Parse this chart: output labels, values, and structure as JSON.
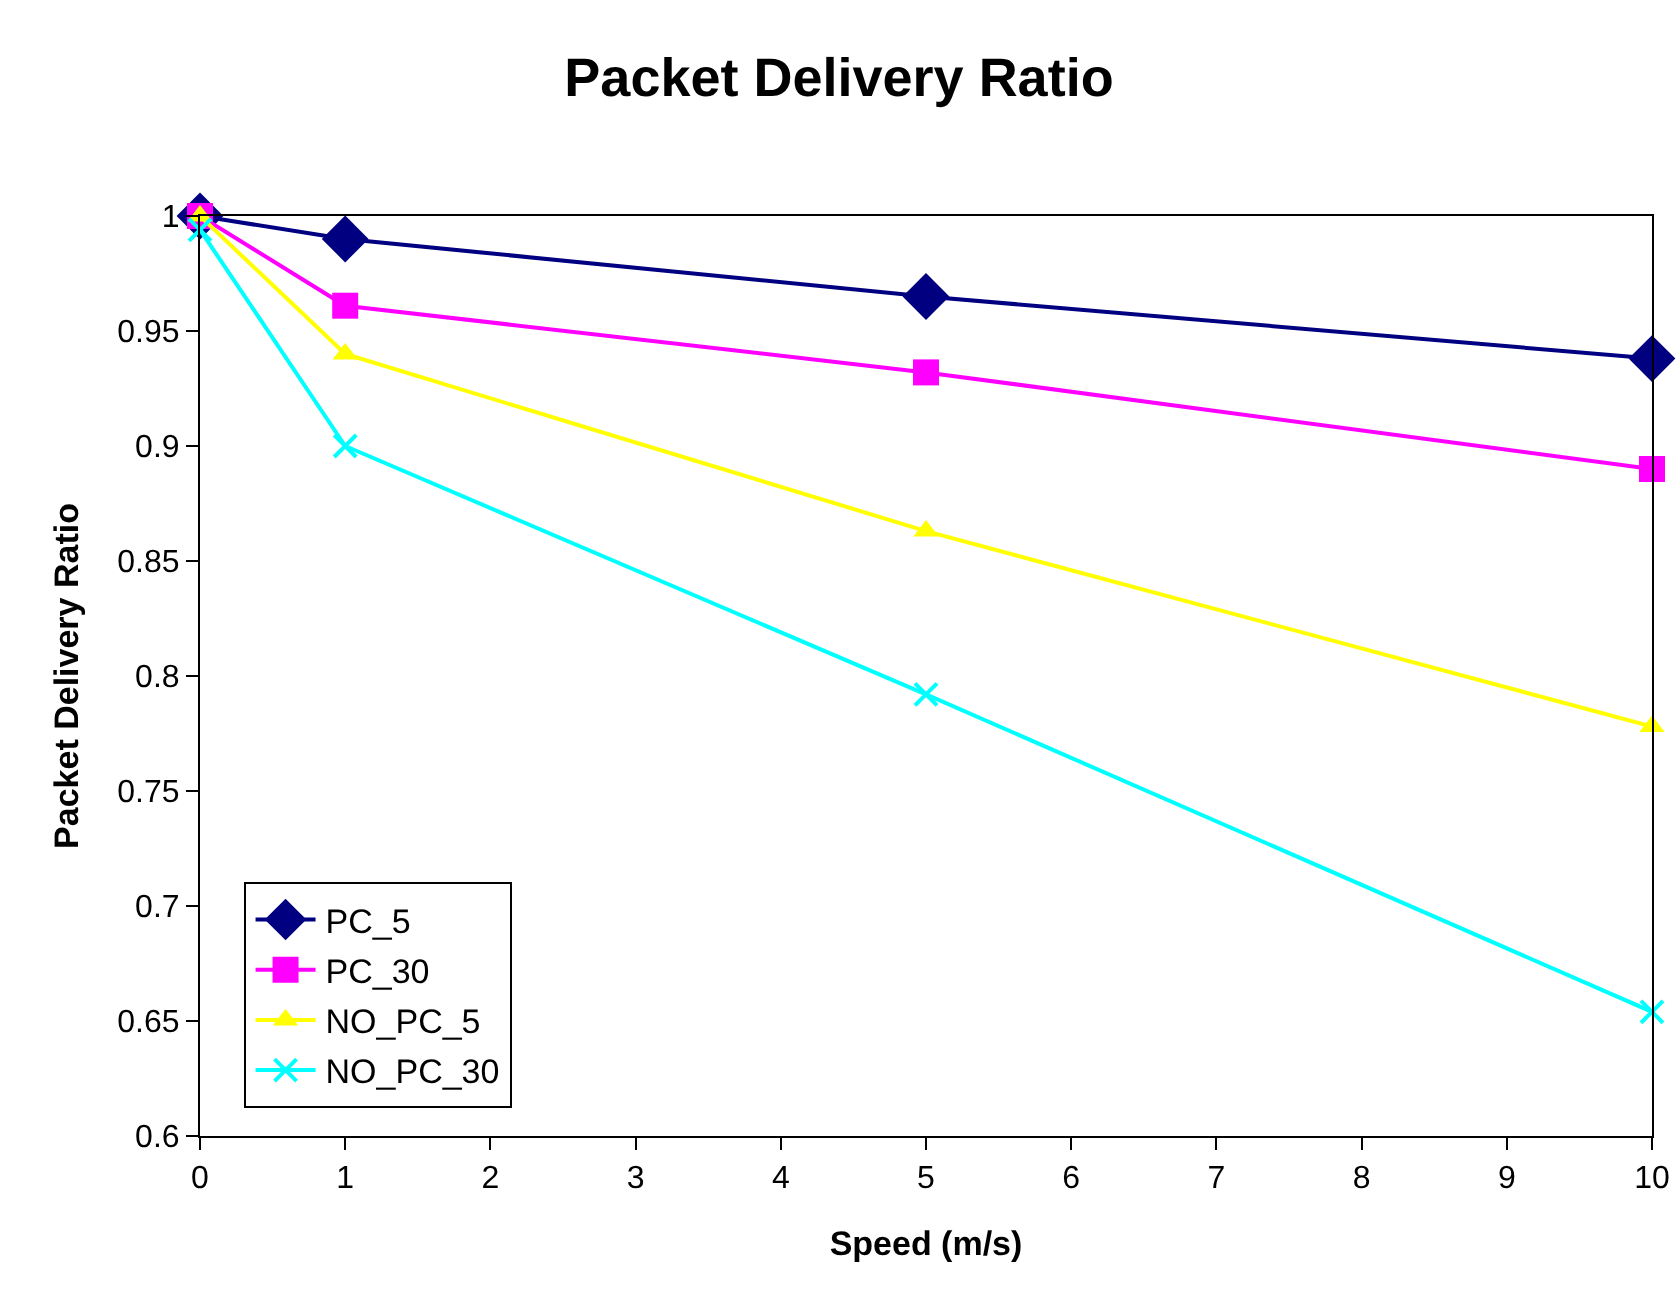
{
  "chart_data": {
    "type": "line",
    "title": "Packet Delivery Ratio",
    "xlabel": "Speed (m/s)",
    "ylabel": "Packet Delivery Ratio",
    "x": [
      0,
      1,
      5,
      10
    ],
    "series": [
      {
        "name": "PC_5",
        "color": "#000080",
        "marker": "diamond",
        "values": [
          1,
          0.99,
          0.965,
          0.938
        ]
      },
      {
        "name": "PC_30",
        "color": "#ff00ff",
        "marker": "square",
        "values": [
          1,
          0.961,
          0.932,
          0.89
        ]
      },
      {
        "name": "NO_PC_5",
        "color": "#ffff00",
        "marker": "triangle",
        "values": [
          1,
          0.94,
          0.863,
          0.778
        ]
      },
      {
        "name": "NO_PC_30",
        "color": "#00ffff",
        "marker": "cross",
        "values": [
          0.994,
          0.9,
          0.792,
          0.654
        ]
      }
    ],
    "xlim": [
      0,
      10
    ],
    "xticks": [
      0,
      1,
      2,
      3,
      4,
      5,
      6,
      7,
      8,
      9,
      10
    ],
    "ylim": [
      0.6,
      1
    ],
    "yticks": [
      0.6,
      0.65,
      0.7,
      0.75,
      0.8,
      0.85,
      0.9,
      0.95,
      1
    ],
    "grid": false,
    "legend": "bottom left",
    "line_style": "solid"
  }
}
